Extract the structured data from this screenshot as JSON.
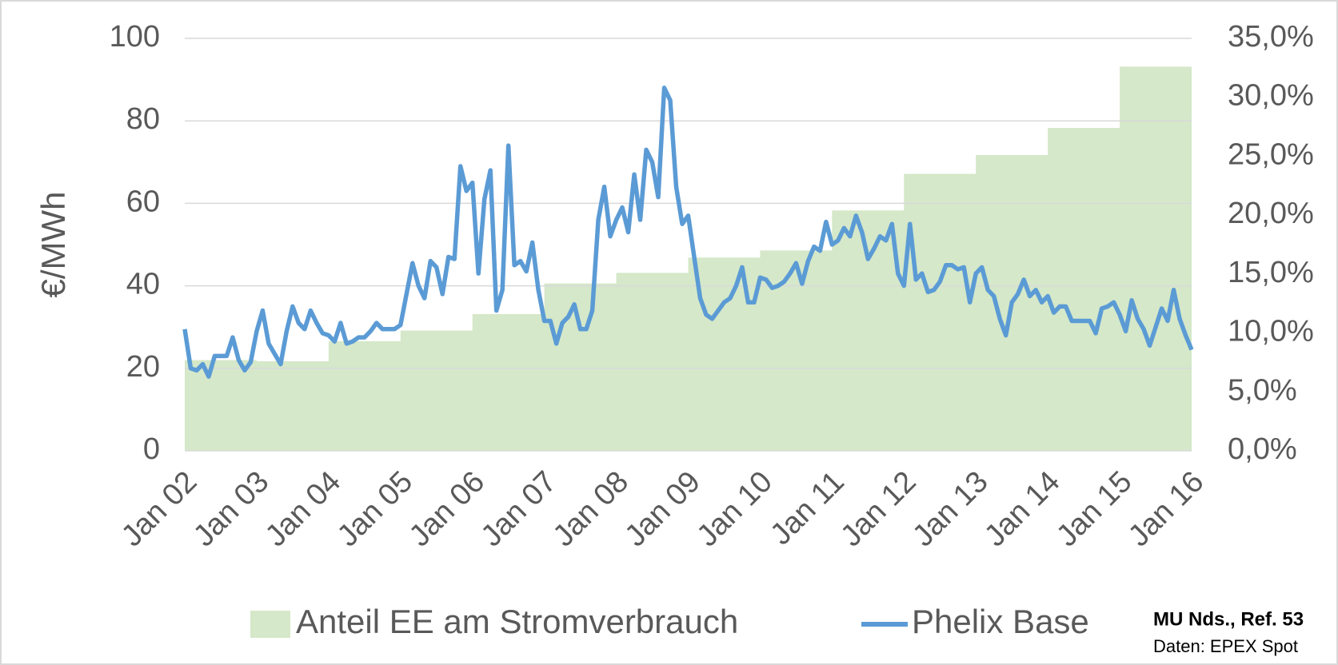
{
  "chart_data": {
    "type": "line",
    "y_label": "€/MWh",
    "notes": [
      "MU Nds., Ref. 53",
      "Daten: EPEX Spot"
    ],
    "categories": [
      "Jan 02",
      null,
      null,
      null,
      null,
      null,
      null,
      null,
      null,
      null,
      null,
      null,
      "Jan 03",
      null,
      null,
      null,
      null,
      null,
      null,
      null,
      null,
      null,
      null,
      null,
      "Jan 04",
      null,
      null,
      null,
      null,
      null,
      null,
      null,
      null,
      null,
      null,
      null,
      "Jan 05",
      null,
      null,
      null,
      null,
      null,
      null,
      null,
      null,
      null,
      null,
      null,
      "Jan 06",
      null,
      null,
      null,
      null,
      null,
      null,
      null,
      null,
      null,
      null,
      null,
      "Jan 07",
      null,
      null,
      null,
      null,
      null,
      null,
      null,
      null,
      null,
      null,
      null,
      "Jan 08",
      null,
      null,
      null,
      null,
      null,
      null,
      null,
      null,
      null,
      null,
      null,
      "Jan 09",
      null,
      null,
      null,
      null,
      null,
      null,
      null,
      null,
      null,
      null,
      null,
      "Jan 10",
      null,
      null,
      null,
      null,
      null,
      null,
      null,
      null,
      null,
      null,
      null,
      "Jan 11",
      null,
      null,
      null,
      null,
      null,
      null,
      null,
      null,
      null,
      null,
      null,
      "Jan 12",
      null,
      null,
      null,
      null,
      null,
      null,
      null,
      null,
      null,
      null,
      null,
      "Jan 13",
      null,
      null,
      null,
      null,
      null,
      null,
      null,
      null,
      null,
      null,
      null,
      "Jan 14",
      null,
      null,
      null,
      null,
      null,
      null,
      null,
      null,
      null,
      null,
      null,
      "Jan 15",
      null,
      null,
      null,
      null,
      null,
      null,
      null,
      null,
      null,
      null,
      null,
      "Jan 16"
    ],
    "series": [
      {
        "name": "Anteil EE am Stromverbrauch",
        "type": "area",
        "axis": "y2",
        "color": "#d5e8c9",
        "values": [
          7.7,
          7.7,
          7.7,
          7.7,
          7.7,
          7.7,
          7.7,
          7.7,
          7.7,
          7.7,
          7.7,
          7.7,
          7.6,
          7.6,
          7.6,
          7.6,
          7.6,
          7.6,
          7.6,
          7.6,
          7.6,
          7.6,
          7.6,
          7.6,
          9.3,
          9.3,
          9.3,
          9.3,
          9.3,
          9.3,
          9.3,
          9.3,
          9.3,
          9.3,
          9.3,
          9.3,
          10.2,
          10.2,
          10.2,
          10.2,
          10.2,
          10.2,
          10.2,
          10.2,
          10.2,
          10.2,
          10.2,
          10.2,
          11.6,
          11.6,
          11.6,
          11.6,
          11.6,
          11.6,
          11.6,
          11.6,
          11.6,
          11.6,
          11.6,
          11.6,
          14.2,
          14.2,
          14.2,
          14.2,
          14.2,
          14.2,
          14.2,
          14.2,
          14.2,
          14.2,
          14.2,
          14.2,
          15.1,
          15.1,
          15.1,
          15.1,
          15.1,
          15.1,
          15.1,
          15.1,
          15.1,
          15.1,
          15.1,
          15.1,
          16.4,
          16.4,
          16.4,
          16.4,
          16.4,
          16.4,
          16.4,
          16.4,
          16.4,
          16.4,
          16.4,
          16.4,
          17.0,
          17.0,
          17.0,
          17.0,
          17.0,
          17.0,
          17.0,
          17.0,
          17.0,
          17.0,
          17.0,
          17.0,
          20.4,
          20.4,
          20.4,
          20.4,
          20.4,
          20.4,
          20.4,
          20.4,
          20.4,
          20.4,
          20.4,
          20.4,
          23.5,
          23.5,
          23.5,
          23.5,
          23.5,
          23.5,
          23.5,
          23.5,
          23.5,
          23.5,
          23.5,
          23.5,
          25.1,
          25.1,
          25.1,
          25.1,
          25.1,
          25.1,
          25.1,
          25.1,
          25.1,
          25.1,
          25.1,
          25.1,
          27.4,
          27.4,
          27.4,
          27.4,
          27.4,
          27.4,
          27.4,
          27.4,
          27.4,
          27.4,
          27.4,
          27.4,
          32.6,
          32.6,
          32.6,
          32.6,
          32.6,
          32.6,
          32.6,
          32.6,
          32.6,
          32.6,
          32.6,
          32.6,
          null
        ]
      },
      {
        "name": "Phelix Base",
        "type": "line",
        "color": "#5b9bd5",
        "values": [
          29.5,
          20,
          19.5,
          21,
          18,
          23,
          23,
          23,
          27.5,
          22,
          19.5,
          21.5,
          29,
          34,
          26,
          23.5,
          21,
          29,
          35,
          31,
          29.5,
          34,
          31,
          28.5,
          28,
          26.5,
          31,
          26,
          26.5,
          27.5,
          27.5,
          29,
          31,
          29.5,
          29.5,
          29.5,
          30.5,
          38,
          45.5,
          40,
          37,
          46,
          44.5,
          38,
          47,
          46.5,
          69,
          63,
          65,
          43,
          61,
          68,
          34,
          39,
          74,
          45,
          46,
          43.5,
          50.5,
          39,
          31.5,
          31.5,
          26,
          31,
          32.5,
          35.5,
          29.5,
          29.5,
          34,
          56,
          64,
          52,
          56,
          59,
          53,
          67,
          56,
          73,
          70,
          61.5,
          88,
          85,
          64,
          55,
          57,
          47,
          37,
          33,
          32,
          34,
          36,
          37,
          40,
          44.5,
          36,
          36,
          42,
          41.5,
          39.5,
          40,
          41,
          43,
          45.5,
          40.5,
          46,
          49.5,
          48.5,
          55.5,
          50,
          51,
          54,
          52,
          57,
          53,
          46.5,
          49,
          52,
          51,
          55,
          43,
          40,
          55,
          41.5,
          43,
          38.5,
          39,
          41,
          45,
          45,
          44,
          44.5,
          36,
          43,
          44.5,
          39,
          37.5,
          32,
          28,
          36,
          38,
          41.5,
          37.5,
          39,
          36,
          37.5,
          33.5,
          35,
          35,
          31.5,
          31.5,
          31.5,
          31.5,
          28.5,
          34.5,
          35,
          36,
          33,
          29,
          36.5,
          32,
          29.5,
          25.5,
          30,
          34.5,
          31.5,
          39,
          32,
          28,
          24.5
        ]
      }
    ],
    "ylim": [
      0,
      100
    ],
    "yticks": [
      0,
      20,
      40,
      60,
      80,
      100
    ],
    "y2lim": [
      0,
      35
    ],
    "y2ticks": [
      {
        "value": 0,
        "label": "0,0%"
      },
      {
        "value": 5,
        "label": "5,0%"
      },
      {
        "value": 10,
        "label": "10,0%"
      },
      {
        "value": 15,
        "label": "15,0%"
      },
      {
        "value": 20,
        "label": "20,0%"
      },
      {
        "value": 25,
        "label": "25,0%"
      },
      {
        "value": 30,
        "label": "30,0%"
      },
      {
        "value": 35,
        "label": "35,0%"
      }
    ],
    "grid": true,
    "legend": "bottom"
  }
}
